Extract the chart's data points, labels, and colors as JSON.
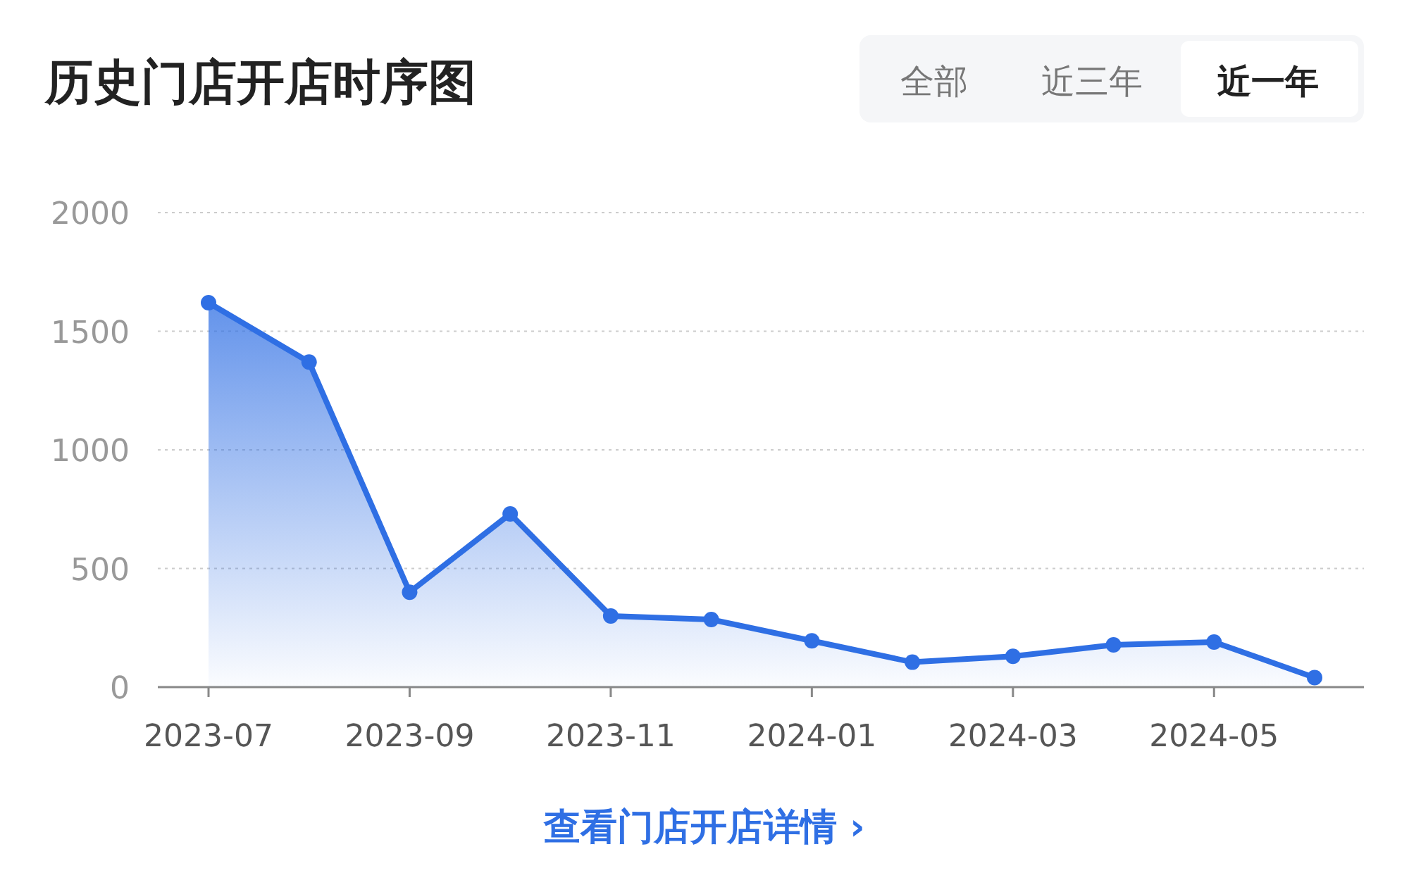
{
  "chart_data": {
    "type": "area",
    "title": "历史门店开店时序图",
    "categories": [
      "2023-07",
      null,
      "2023-09",
      null,
      "2023-11",
      null,
      "2024-01",
      null,
      "2024-03",
      null,
      "2024-05",
      null
    ],
    "series": [
      {
        "color": "#2f6fe4",
        "values": [
          1620,
          1370,
          400,
          730,
          300,
          285,
          195,
          105,
          130,
          178,
          190,
          40
        ]
      }
    ],
    "ylim": [
      0,
      2000
    ],
    "yticks": [
      0,
      500,
      1000,
      1500,
      2000
    ],
    "grid": "y",
    "marker": "circle",
    "annotations": [
      "全部",
      "近三年",
      "近一年",
      "查看门店开店详情 ›"
    ]
  }
}
